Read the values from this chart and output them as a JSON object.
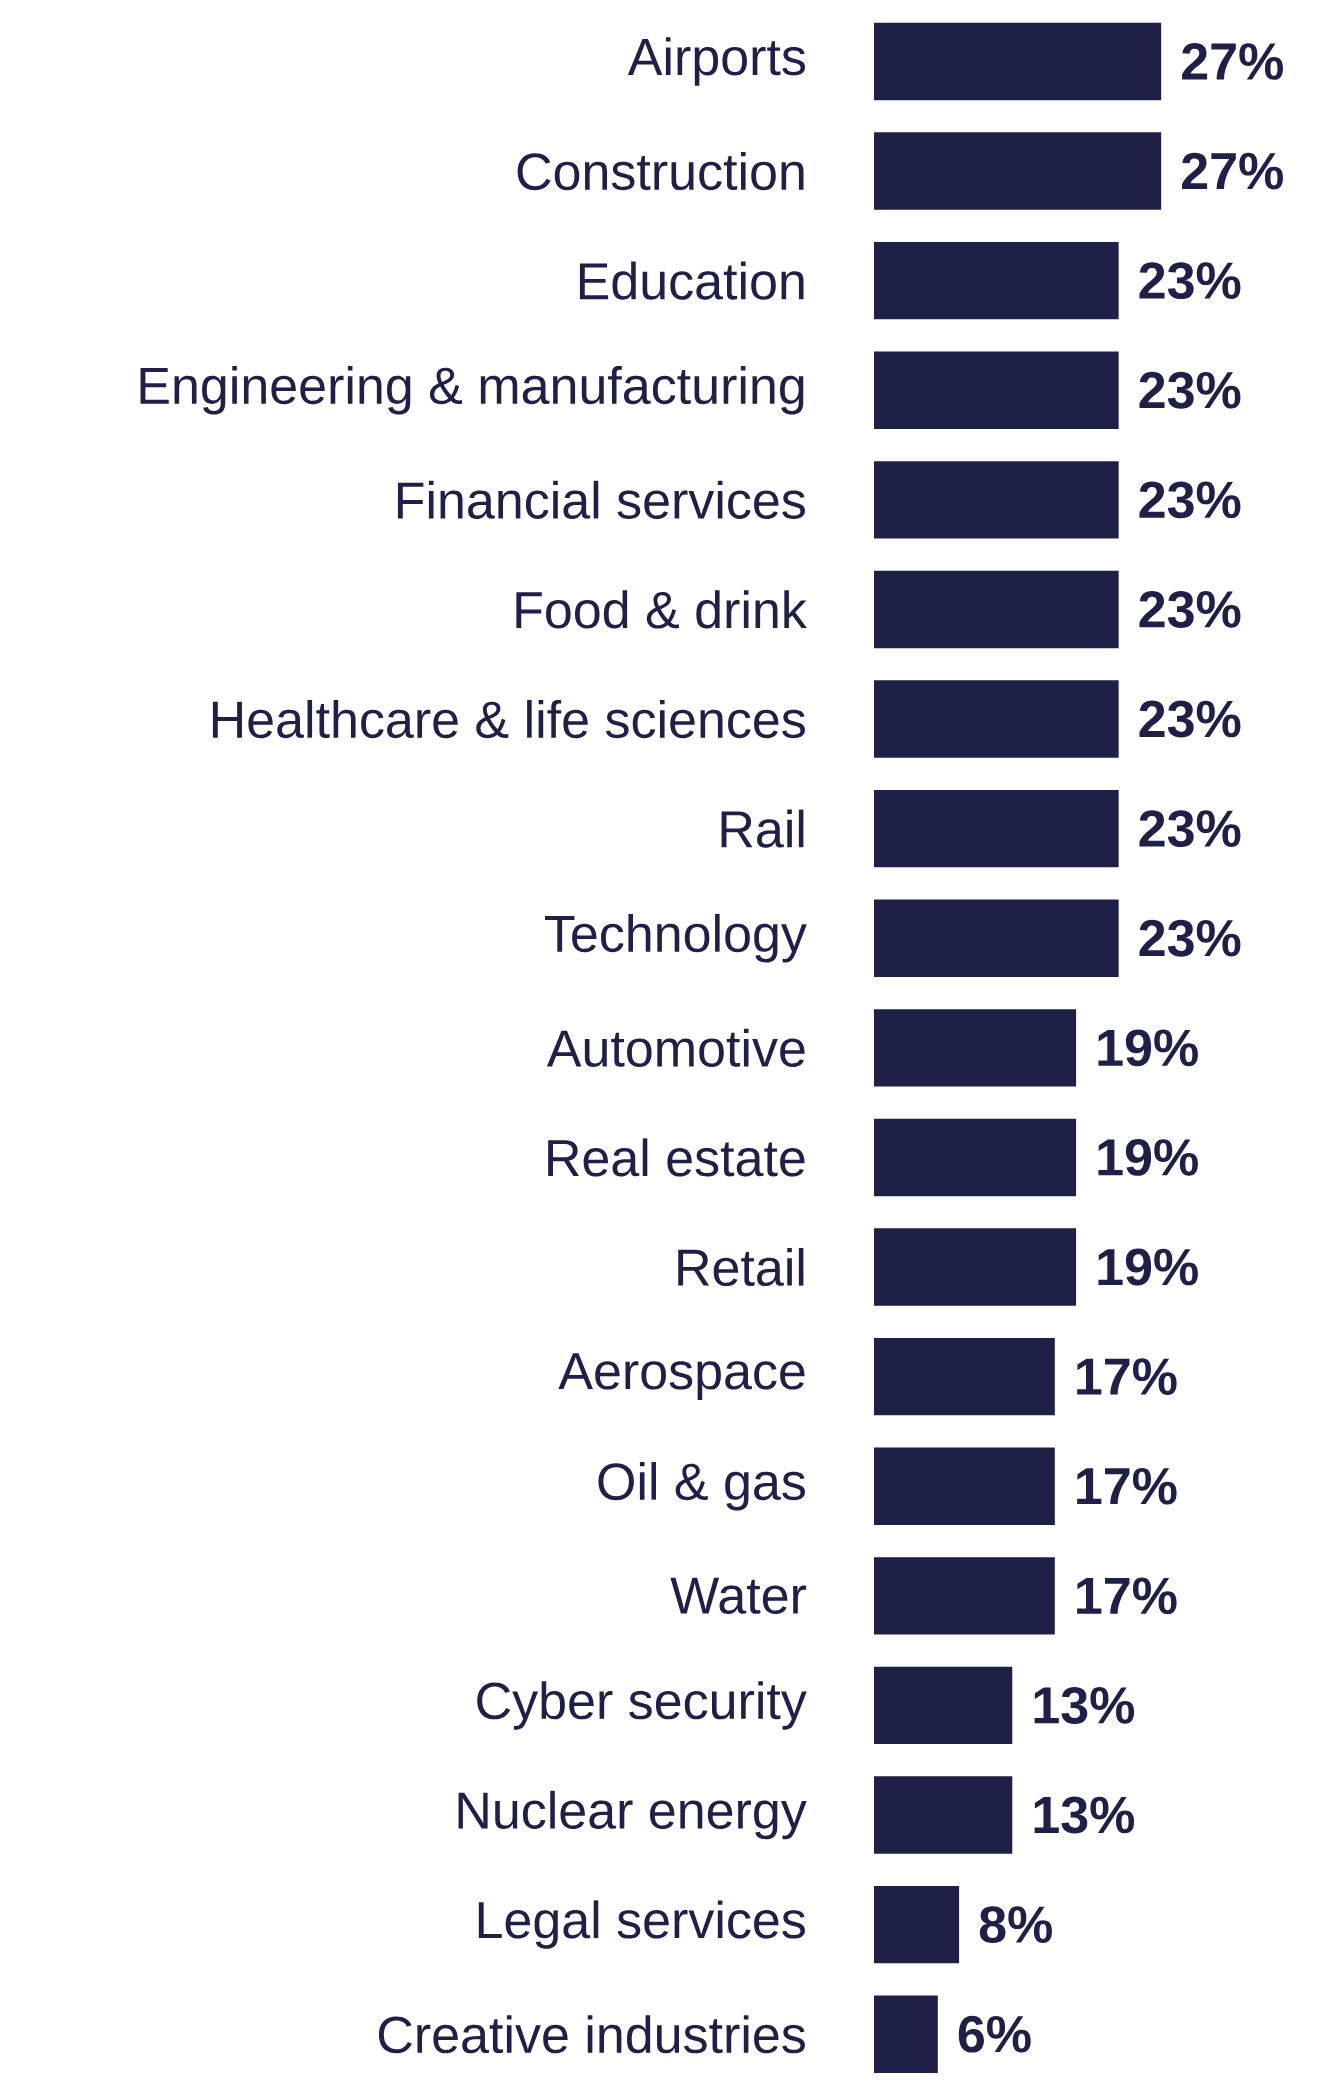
{
  "chart_data": {
    "type": "bar",
    "orientation": "horizontal",
    "color": "#1f2048",
    "categories": [
      "Airports",
      "Construction",
      "Education",
      "Engineering  & manufacturing",
      "Financial services",
      "Food & drink",
      "Healthcare & life sciences",
      "Rail",
      "Technology",
      "Automotive",
      "Real estate",
      "Retail",
      "Aerospace",
      "Oil & gas",
      "Water",
      "Cyber security",
      "Nuclear energy",
      "Legal services",
      "Creative industries"
    ],
    "values": [
      27,
      27,
      23,
      23,
      23,
      23,
      23,
      23,
      23,
      19,
      19,
      19,
      17,
      17,
      17,
      13,
      13,
      8,
      6
    ],
    "value_labels": [
      "27%",
      "27%",
      "23%",
      "23%",
      "23%",
      "23%",
      "23%",
      "23%",
      "23%",
      "19%",
      "19%",
      "19%",
      "17%",
      "17%",
      "17%",
      "13%",
      "13%",
      "8%",
      "6%"
    ]
  }
}
